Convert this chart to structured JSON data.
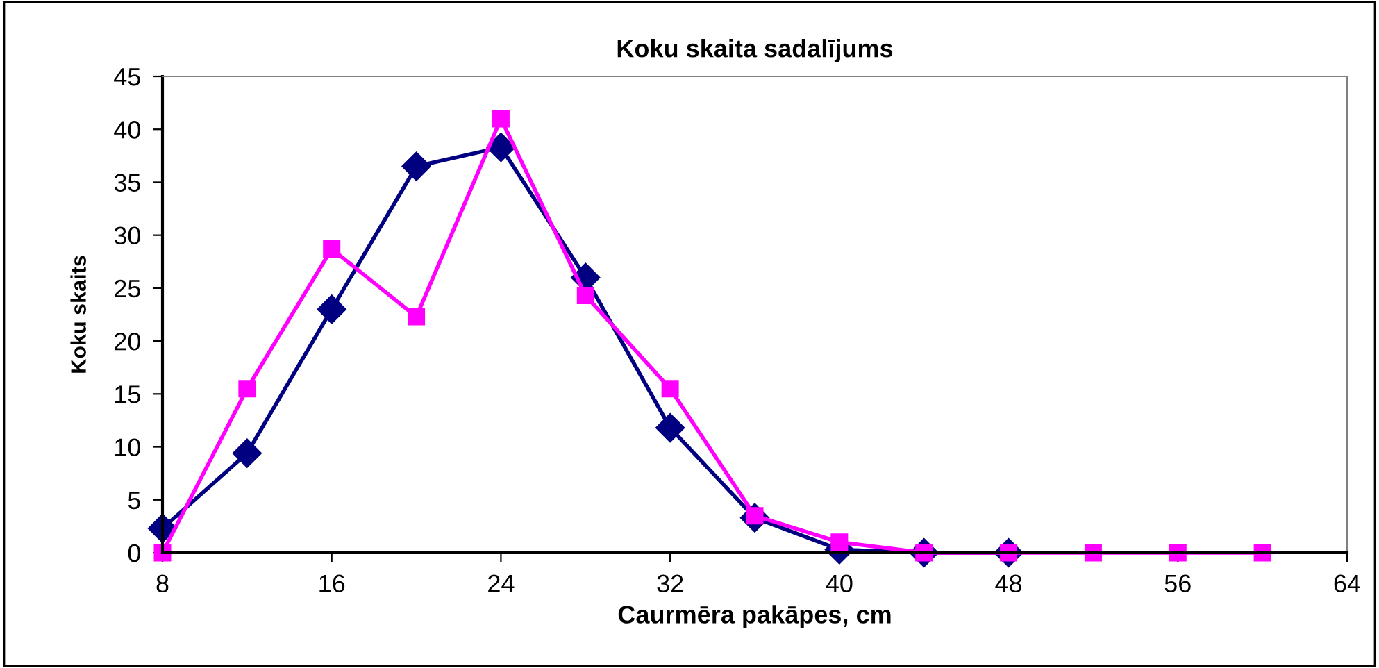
{
  "chart_data": {
    "type": "line",
    "title": "Koku skaita sadalījums",
    "xlabel": "Caurmēra pakāpes, cm",
    "ylabel": "Koku skaits",
    "x": [
      8,
      12,
      16,
      20,
      24,
      28,
      32,
      36,
      40,
      44,
      48,
      52,
      56,
      60
    ],
    "series": [
      {
        "color": "#000080",
        "marker": "diamond",
        "values": [
          2.3,
          9.4,
          23,
          36.5,
          38.3,
          26,
          11.8,
          3.3,
          0.3,
          0,
          0,
          null,
          null,
          null
        ]
      },
      {
        "color": "#ff00ff",
        "marker": "square",
        "values": [
          0,
          15.5,
          28.7,
          22.3,
          41,
          24.3,
          15.5,
          3.5,
          1.0,
          0,
          0,
          0,
          0,
          0
        ]
      }
    ],
    "xlim": [
      8,
      64
    ],
    "xticks": [
      8,
      16,
      24,
      32,
      40,
      48,
      56,
      64
    ],
    "ylim": [
      0,
      45
    ],
    "yticks": [
      0,
      5,
      10,
      15,
      20,
      25,
      30,
      35,
      40,
      45
    ],
    "grid": false,
    "legend": false,
    "line_style": "solid"
  }
}
